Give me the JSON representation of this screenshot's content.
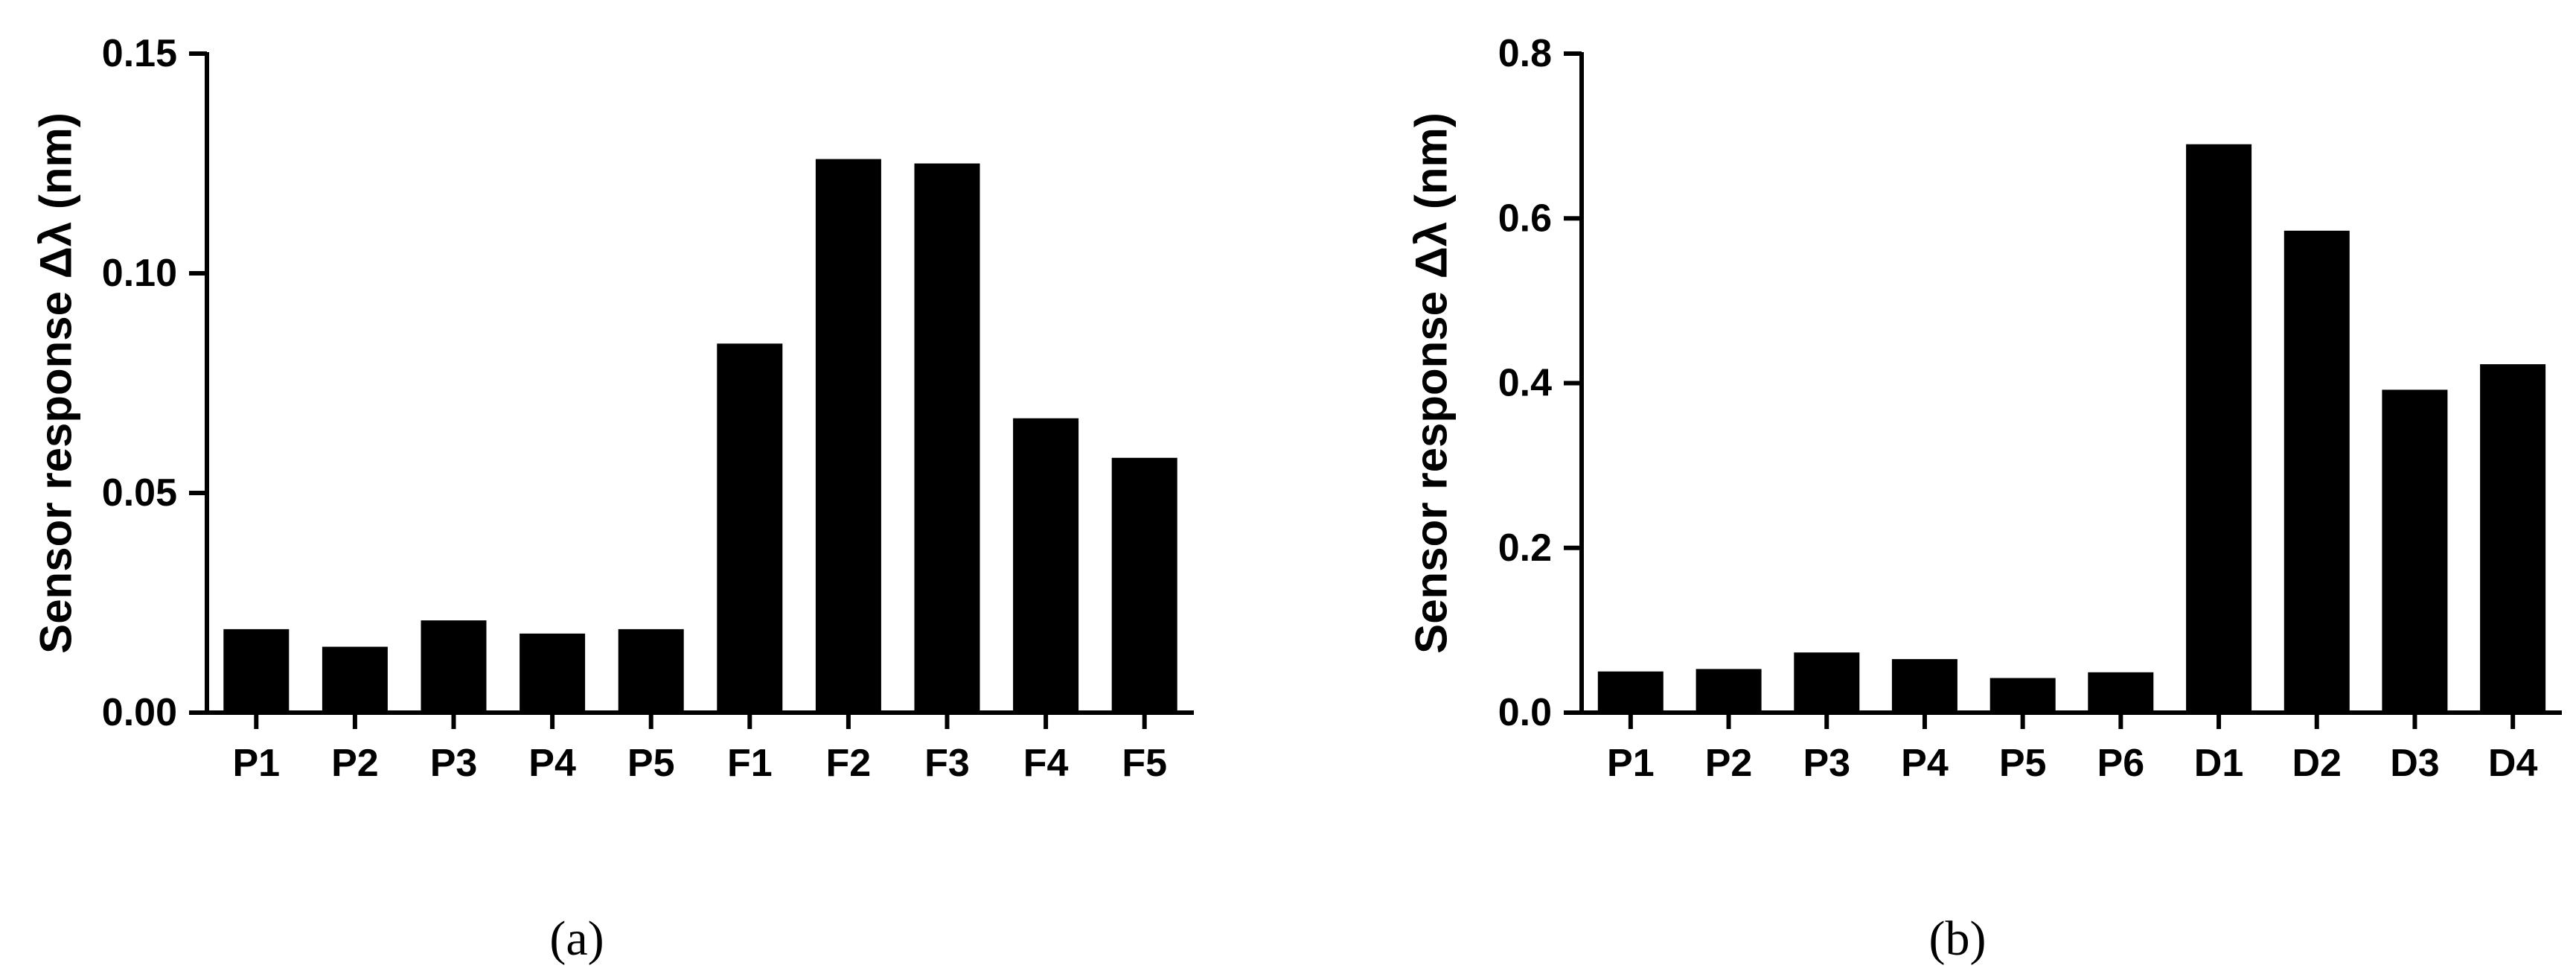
{
  "chart_data": [
    {
      "type": "bar",
      "panel": "a",
      "caption": "(a)",
      "categories": [
        "P1",
        "P2",
        "P3",
        "P4",
        "P5",
        "F1",
        "F2",
        "F3",
        "F4",
        "F5"
      ],
      "values": [
        0.019,
        0.015,
        0.021,
        0.018,
        0.019,
        0.084,
        0.126,
        0.125,
        0.067,
        0.058
      ],
      "ylabel": "Sensor response Δλ (nm)",
      "ylim": [
        0,
        0.15
      ],
      "yticks": [
        "0.00",
        "0.05",
        "0.10",
        "0.15"
      ],
      "grid": false,
      "bar_color": "#000000"
    },
    {
      "type": "bar",
      "panel": "b",
      "caption": "(b)",
      "categories": [
        "P1",
        "P2",
        "P3",
        "P4",
        "P5",
        "P6",
        "D1",
        "D2",
        "D3",
        "D4"
      ],
      "values": [
        0.05,
        0.053,
        0.073,
        0.065,
        0.042,
        0.049,
        0.69,
        0.585,
        0.392,
        0.423
      ],
      "ylabel": "Sensor response Δλ (nm)",
      "ylim": [
        0,
        0.8
      ],
      "yticks": [
        "0.0",
        "0.2",
        "0.4",
        "0.6",
        "0.8"
      ],
      "grid": false,
      "bar_color": "#000000"
    }
  ]
}
